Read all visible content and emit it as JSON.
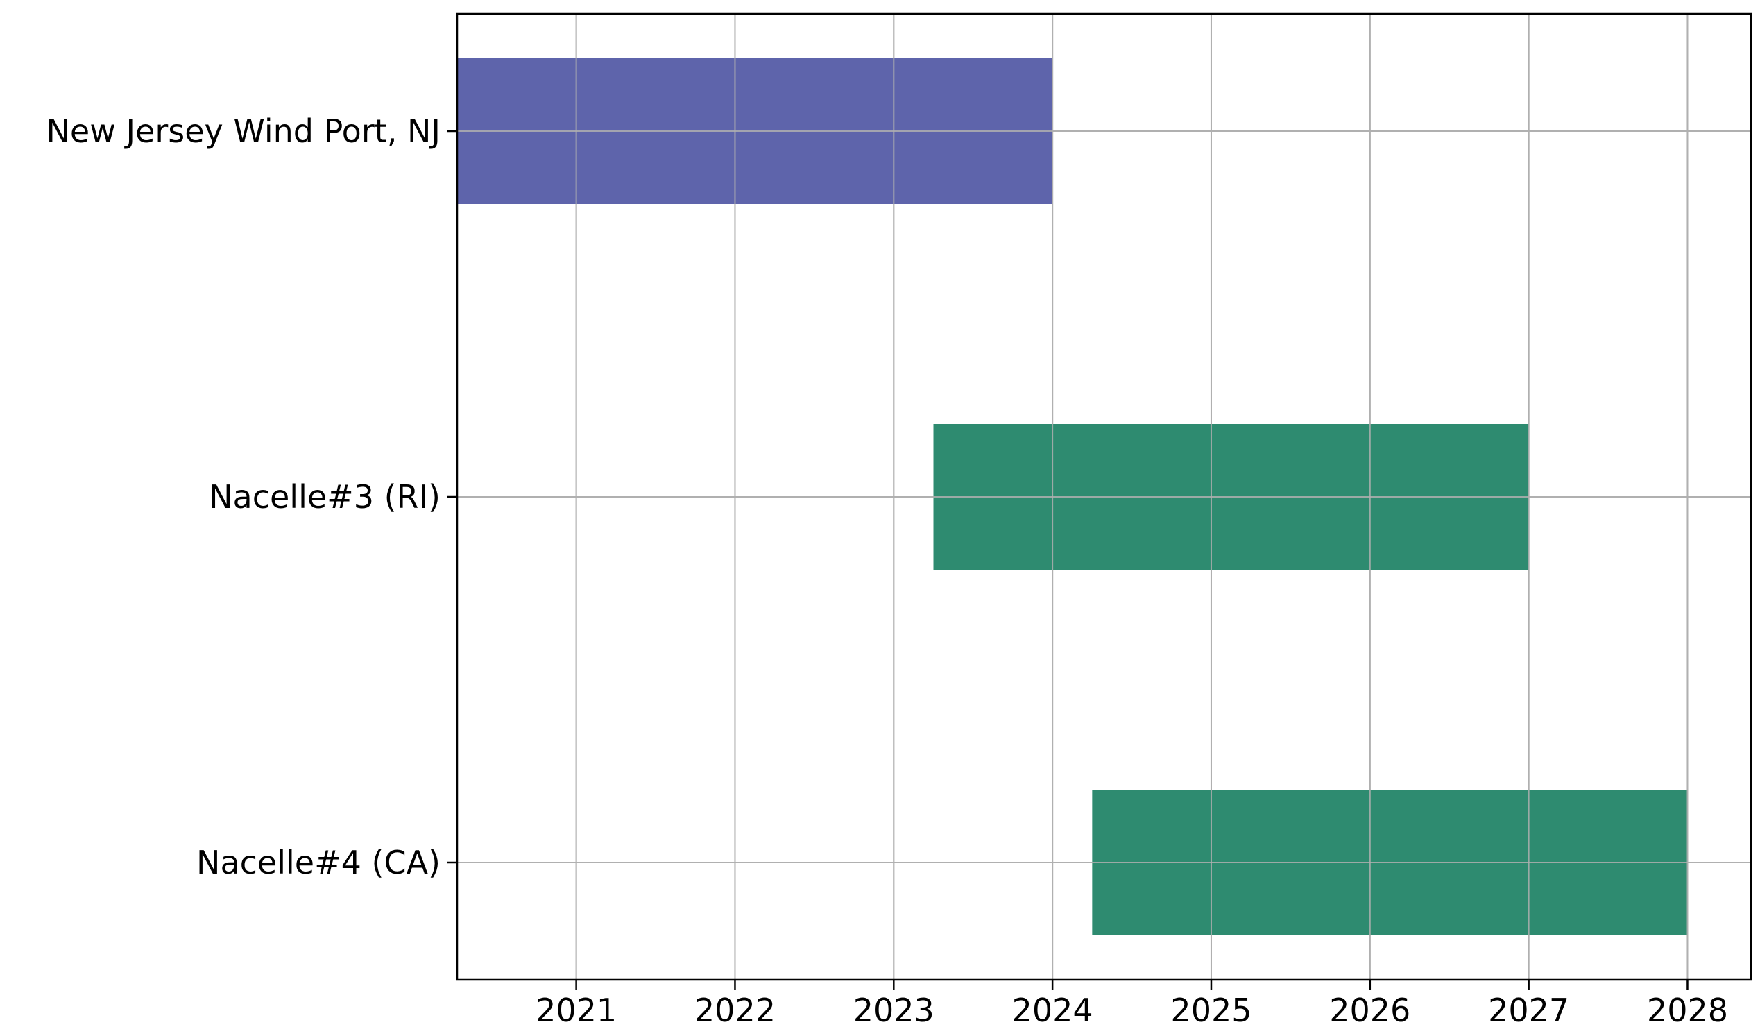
{
  "chart_data": {
    "type": "bar",
    "orientation": "horizontal",
    "title": "",
    "xlabel": "",
    "ylabel": "",
    "xlim": [
      2020.25,
      2028.4
    ],
    "x_ticks": [
      2021,
      2022,
      2023,
      2024,
      2025,
      2026,
      2027,
      2028
    ],
    "x_tick_labels": [
      "2021",
      "2022",
      "2023",
      "2024",
      "2025",
      "2026",
      "2027",
      "2028"
    ],
    "categories": [
      "New Jersey Wind Port, NJ",
      "Nacelle#3 (RI)",
      "Nacelle#4 (CA)"
    ],
    "bars": [
      {
        "label": "New Jersey Wind Port, NJ",
        "start": 2020.25,
        "end": 2024.0,
        "color": "#5e64ab"
      },
      {
        "label": "Nacelle#3 (RI)",
        "start": 2023.25,
        "end": 2027.0,
        "color": "#2e8b70"
      },
      {
        "label": "Nacelle#4 (CA)",
        "start": 2024.25,
        "end": 2028.0,
        "color": "#2e8b70"
      }
    ],
    "grid": true,
    "legend": "none"
  }
}
